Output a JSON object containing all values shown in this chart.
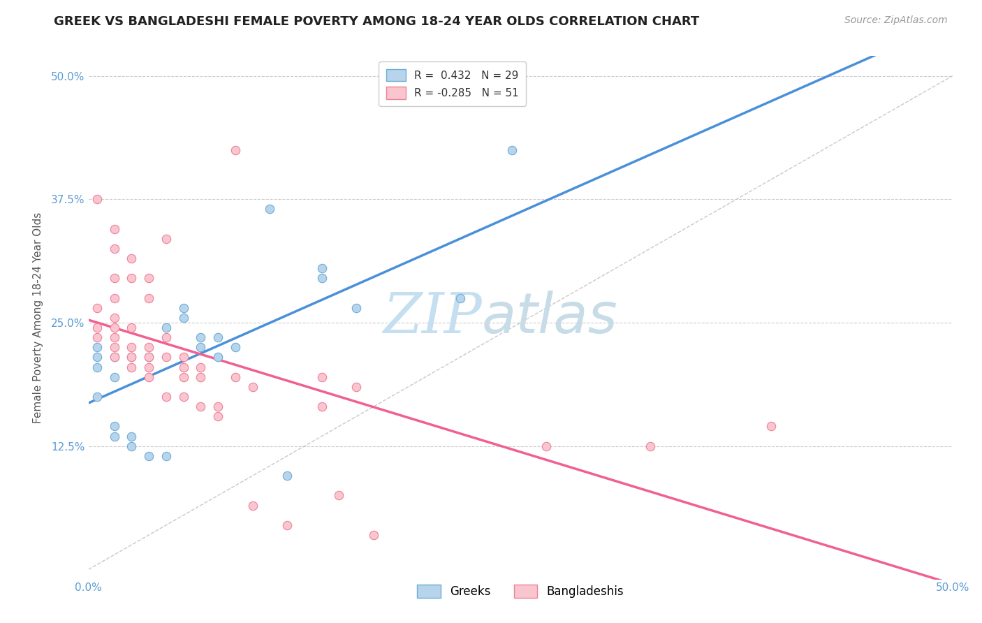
{
  "title": "GREEK VS BANGLADESHI FEMALE POVERTY AMONG 18-24 YEAR OLDS CORRELATION CHART",
  "source": "Source: ZipAtlas.com",
  "ylabel": "Female Poverty Among 18-24 Year Olds",
  "xlim": [
    0,
    0.5
  ],
  "ylim": [
    -0.01,
    0.52
  ],
  "yticks": [
    0.125,
    0.25,
    0.375,
    0.5
  ],
  "yticklabels": [
    "12.5%",
    "25.0%",
    "37.5%",
    "50.0%"
  ],
  "xtick_left": "0.0%",
  "xtick_right": "50.0%",
  "greek_color": "#b8d4ec",
  "greek_edge_color": "#6aaed6",
  "bangladeshi_color": "#f9c6d0",
  "bangladeshi_edge_color": "#f08098",
  "trend_greek_color": "#4a90d9",
  "trend_bangladeshi_color": "#f06090",
  "identity_color": "#bbbbbb",
  "legend_greek_label": "R =  0.432   N = 29",
  "legend_bangladeshi_label": "R = -0.285   N = 51",
  "watermark_zip": "ZIP",
  "watermark_atlas": "atlas",
  "greek_points": [
    [
      0.005,
      0.175
    ],
    [
      0.005,
      0.205
    ],
    [
      0.005,
      0.215
    ],
    [
      0.005,
      0.225
    ],
    [
      0.015,
      0.135
    ],
    [
      0.015,
      0.145
    ],
    [
      0.015,
      0.195
    ],
    [
      0.015,
      0.215
    ],
    [
      0.025,
      0.125
    ],
    [
      0.025,
      0.135
    ],
    [
      0.025,
      0.215
    ],
    [
      0.035,
      0.115
    ],
    [
      0.035,
      0.215
    ],
    [
      0.045,
      0.115
    ],
    [
      0.045,
      0.245
    ],
    [
      0.055,
      0.255
    ],
    [
      0.055,
      0.265
    ],
    [
      0.065,
      0.225
    ],
    [
      0.065,
      0.235
    ],
    [
      0.075,
      0.215
    ],
    [
      0.075,
      0.235
    ],
    [
      0.085,
      0.225
    ],
    [
      0.105,
      0.365
    ],
    [
      0.115,
      0.095
    ],
    [
      0.135,
      0.295
    ],
    [
      0.135,
      0.305
    ],
    [
      0.155,
      0.265
    ],
    [
      0.215,
      0.275
    ],
    [
      0.245,
      0.425
    ]
  ],
  "bangladeshi_points": [
    [
      0.005,
      0.235
    ],
    [
      0.005,
      0.245
    ],
    [
      0.005,
      0.265
    ],
    [
      0.005,
      0.375
    ],
    [
      0.015,
      0.215
    ],
    [
      0.015,
      0.225
    ],
    [
      0.015,
      0.235
    ],
    [
      0.015,
      0.245
    ],
    [
      0.015,
      0.255
    ],
    [
      0.015,
      0.275
    ],
    [
      0.015,
      0.295
    ],
    [
      0.015,
      0.325
    ],
    [
      0.015,
      0.345
    ],
    [
      0.025,
      0.205
    ],
    [
      0.025,
      0.215
    ],
    [
      0.025,
      0.225
    ],
    [
      0.025,
      0.245
    ],
    [
      0.025,
      0.295
    ],
    [
      0.025,
      0.315
    ],
    [
      0.035,
      0.195
    ],
    [
      0.035,
      0.205
    ],
    [
      0.035,
      0.215
    ],
    [
      0.035,
      0.225
    ],
    [
      0.035,
      0.275
    ],
    [
      0.035,
      0.295
    ],
    [
      0.045,
      0.175
    ],
    [
      0.045,
      0.215
    ],
    [
      0.045,
      0.235
    ],
    [
      0.045,
      0.335
    ],
    [
      0.055,
      0.175
    ],
    [
      0.055,
      0.195
    ],
    [
      0.055,
      0.205
    ],
    [
      0.055,
      0.215
    ],
    [
      0.065,
      0.165
    ],
    [
      0.065,
      0.195
    ],
    [
      0.065,
      0.205
    ],
    [
      0.075,
      0.155
    ],
    [
      0.075,
      0.165
    ],
    [
      0.085,
      0.195
    ],
    [
      0.085,
      0.425
    ],
    [
      0.095,
      0.065
    ],
    [
      0.095,
      0.185
    ],
    [
      0.115,
      0.045
    ],
    [
      0.135,
      0.165
    ],
    [
      0.135,
      0.195
    ],
    [
      0.145,
      0.075
    ],
    [
      0.155,
      0.185
    ],
    [
      0.165,
      0.035
    ],
    [
      0.265,
      0.125
    ],
    [
      0.325,
      0.125
    ],
    [
      0.395,
      0.145
    ]
  ],
  "background_color": "#ffffff",
  "grid_color": "#cccccc",
  "title_fontsize": 13,
  "axis_label_fontsize": 11,
  "tick_fontsize": 11,
  "source_fontsize": 10,
  "marker_size": 80,
  "watermark_color_zip": "#c5dff0",
  "watermark_color_atlas": "#c8dce8",
  "watermark_fontsize": 58
}
